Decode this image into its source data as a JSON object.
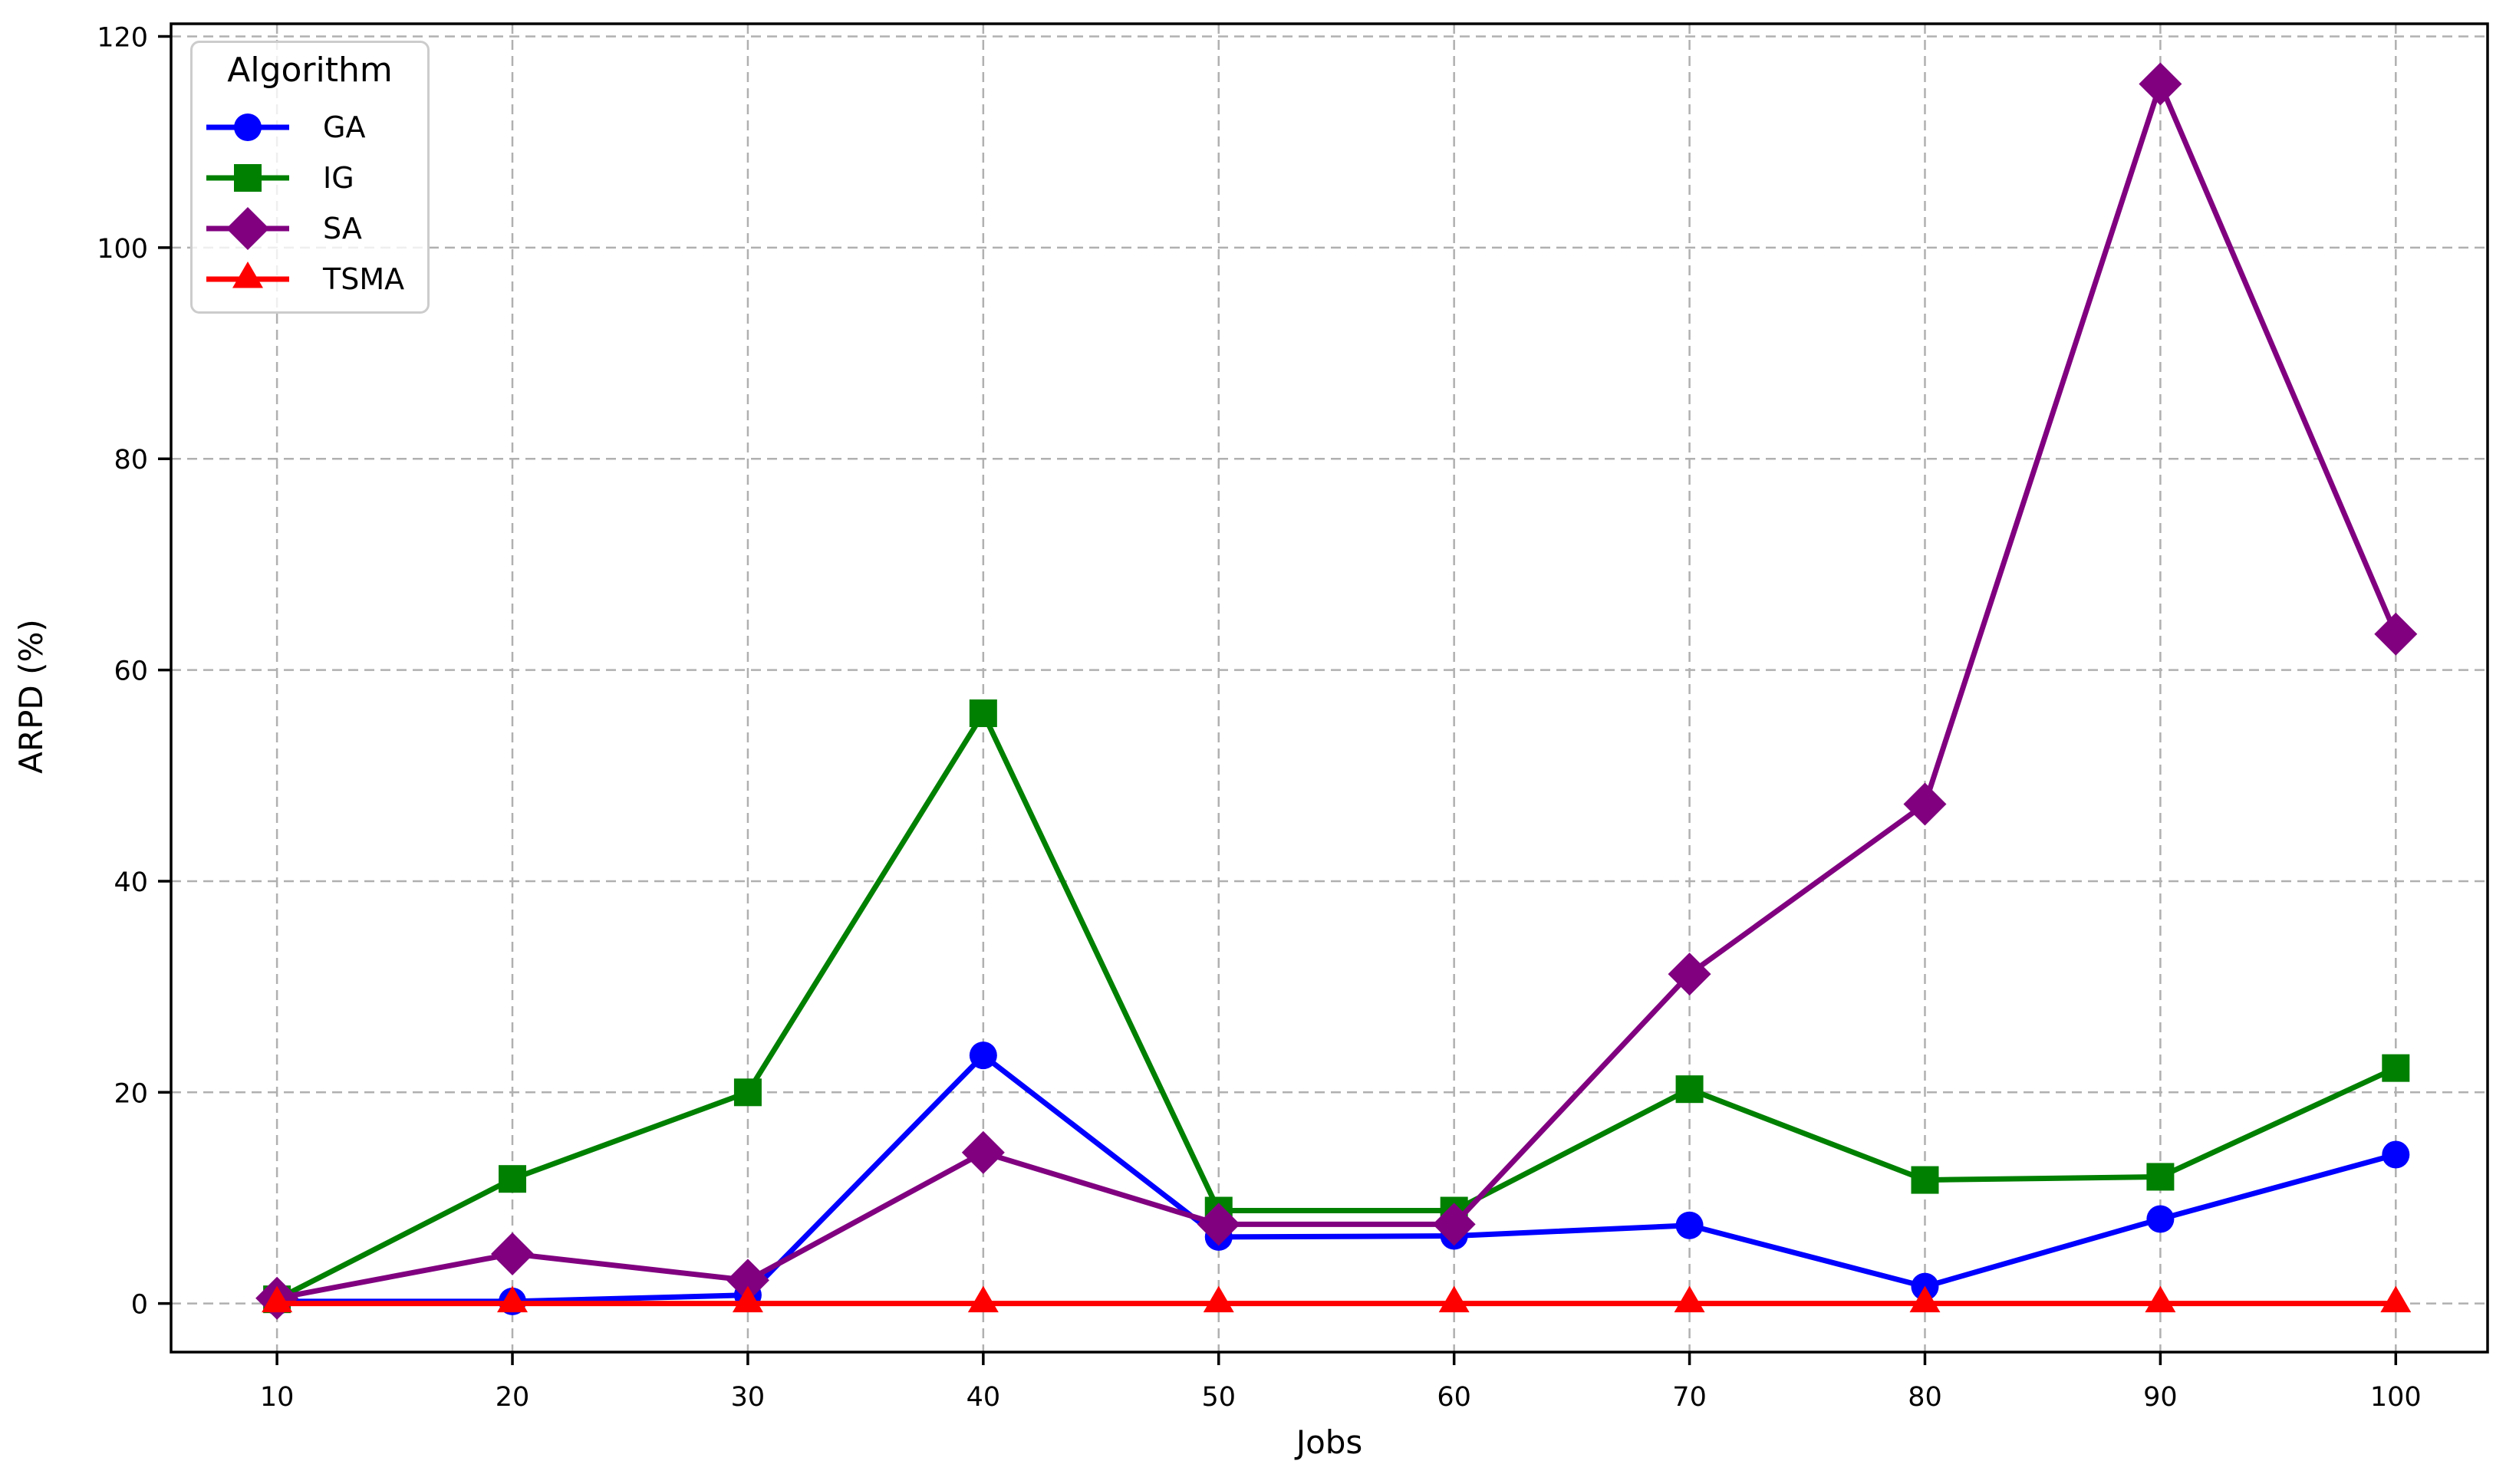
{
  "figure": {
    "background": "#ffffff"
  },
  "chart_data": {
    "type": "line",
    "title": "",
    "xlabel": "Jobs",
    "ylabel": "ARPD (%)",
    "legend": {
      "title": "Algorithm",
      "position": "upper left",
      "entries": [
        "GA",
        "IG",
        "SA",
        "TSMA"
      ]
    },
    "x": [
      10,
      20,
      30,
      40,
      50,
      60,
      70,
      80,
      90,
      100
    ],
    "xticks": [
      10,
      20,
      30,
      40,
      50,
      60,
      70,
      80,
      90,
      100
    ],
    "yticks": [
      0,
      20,
      40,
      60,
      80,
      100,
      120
    ],
    "xlim": [
      5.5,
      103.9
    ],
    "ylim": [
      -4.6,
      121.2
    ],
    "grid": {
      "show": true,
      "style": "dashed",
      "color": "#b0b0b0"
    },
    "series": [
      {
        "name": "GA",
        "color": "#0000ff",
        "marker": "circle",
        "values": [
          0.2,
          0.2,
          0.8,
          23.5,
          6.3,
          6.4,
          7.4,
          1.6,
          8.0,
          14.1
        ]
      },
      {
        "name": "IG",
        "color": "#008000",
        "marker": "square",
        "values": [
          0.4,
          11.8,
          20.0,
          55.9,
          8.8,
          8.8,
          20.3,
          11.7,
          12.0,
          22.3
        ]
      },
      {
        "name": "SA",
        "color": "#800080",
        "marker": "diamond",
        "values": [
          0.5,
          4.7,
          2.2,
          14.3,
          7.5,
          7.5,
          31.2,
          47.3,
          115.5,
          63.4
        ]
      },
      {
        "name": "TSMA",
        "color": "#ff0000",
        "marker": "triangle-up",
        "values": [
          0,
          0,
          0,
          0,
          0,
          0,
          0,
          0,
          0,
          0
        ]
      }
    ]
  }
}
